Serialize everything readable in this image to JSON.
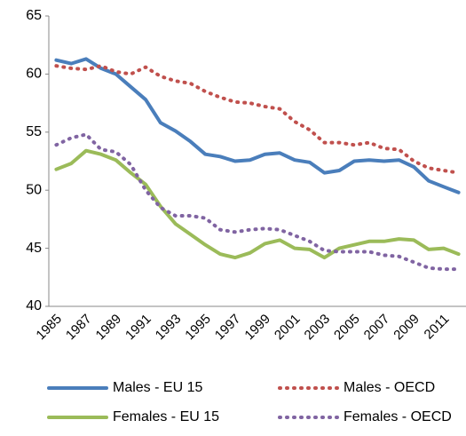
{
  "chart_data": {
    "type": "line",
    "categories": [
      "1985",
      null,
      "1987",
      null,
      "1989",
      null,
      "1991",
      null,
      "1993",
      null,
      "1995",
      null,
      "1997",
      null,
      "1999",
      null,
      "2001",
      null,
      "2003",
      null,
      "2005",
      null,
      "2007",
      null,
      "2009",
      null,
      "2011",
      null
    ],
    "series": [
      {
        "name": "Males - EU 15",
        "color": "#4a7ebb",
        "style": "solid",
        "values": [
          61.2,
          60.9,
          61.3,
          60.5,
          60.0,
          58.9,
          57.8,
          55.8,
          55.1,
          54.2,
          53.1,
          52.9,
          52.5,
          52.6,
          53.1,
          53.2,
          52.6,
          52.4,
          51.5,
          51.7,
          52.5,
          52.6,
          52.5,
          52.6,
          52.0,
          50.8,
          50.3,
          49.8
        ]
      },
      {
        "name": "Males - OECD",
        "color": "#c0504d",
        "style": "dotted",
        "values": [
          60.7,
          60.5,
          60.4,
          60.7,
          60.2,
          60.0,
          60.6,
          59.8,
          59.4,
          59.2,
          58.5,
          58.0,
          57.6,
          57.5,
          57.2,
          57.0,
          55.9,
          55.2,
          54.1,
          54.1,
          53.9,
          54.1,
          53.6,
          53.5,
          52.5,
          51.9,
          51.7,
          51.5
        ]
      },
      {
        "name": "Females - EU 15",
        "color": "#9bbb59",
        "style": "solid",
        "values": [
          51.8,
          52.3,
          53.4,
          53.1,
          52.6,
          51.5,
          50.5,
          48.6,
          47.1,
          46.2,
          45.3,
          44.5,
          44.2,
          44.6,
          45.4,
          45.7,
          45.0,
          44.9,
          44.2,
          45.0,
          45.3,
          45.6,
          45.6,
          45.8,
          45.7,
          44.9,
          45.0,
          44.5
        ]
      },
      {
        "name": "Females - OECD",
        "color": "#8064a2",
        "style": "dotted",
        "values": [
          53.9,
          54.5,
          54.8,
          53.5,
          53.3,
          52.2,
          50.0,
          48.5,
          47.8,
          47.8,
          47.6,
          46.6,
          46.4,
          46.6,
          46.7,
          46.6,
          46.1,
          45.6,
          44.8,
          44.7,
          44.7,
          44.7,
          44.4,
          44.3,
          43.8,
          43.3,
          43.2,
          43.2
        ]
      }
    ],
    "ylim": [
      40,
      65
    ],
    "yticks": [
      40,
      45,
      50,
      55,
      60,
      65
    ],
    "grid": false,
    "legend": "bottom"
  }
}
